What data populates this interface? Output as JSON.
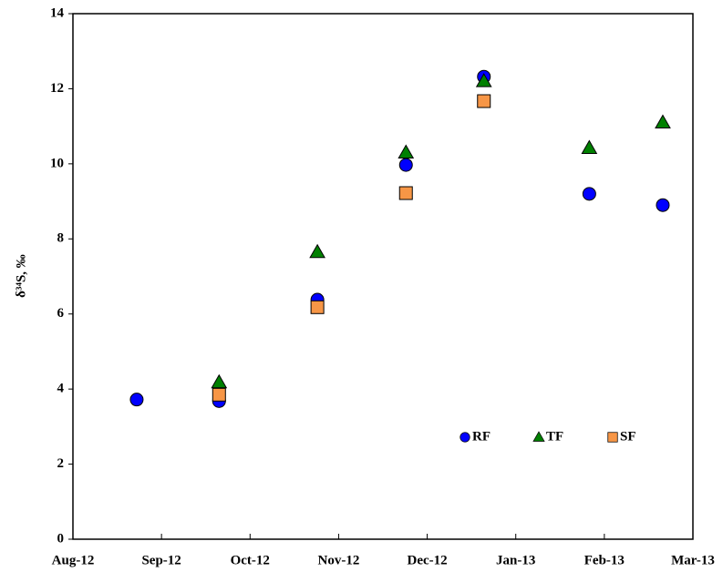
{
  "chart_data": {
    "type": "scatter",
    "ylabel": "δ³⁴S, ‰",
    "xlim": [
      0,
      7
    ],
    "xticks": [
      {
        "value": 0,
        "label": "Aug-12"
      },
      {
        "value": 1,
        "label": "Sep-12"
      },
      {
        "value": 2,
        "label": "Oct-12"
      },
      {
        "value": 3,
        "label": "Nov-12"
      },
      {
        "value": 4,
        "label": "Dec-12"
      },
      {
        "value": 5,
        "label": "Jan-13"
      },
      {
        "value": 6,
        "label": "Feb-13"
      },
      {
        "value": 7,
        "label": "Mar-13"
      }
    ],
    "ylim": [
      0,
      14
    ],
    "yticks": [
      0,
      2,
      4,
      6,
      8,
      10,
      12,
      14
    ],
    "legend": "lower right",
    "series": [
      {
        "name": "RF",
        "color": "#0000ff",
        "marker": "circle",
        "x": [
          0.72,
          1.65,
          2.76,
          3.76,
          4.64,
          5.83,
          6.66
        ],
        "values": [
          3.72,
          3.68,
          6.38,
          9.97,
          12.32,
          9.2,
          8.9
        ]
      },
      {
        "name": "TF",
        "color": "#008000",
        "marker": "triangle",
        "x": [
          1.65,
          2.76,
          3.76,
          4.64,
          5.83,
          6.66
        ],
        "values": [
          4.18,
          7.65,
          10.3,
          12.2,
          10.42,
          11.1
        ]
      },
      {
        "name": "SF",
        "color": "#f79646",
        "marker": "square",
        "x": [
          1.65,
          2.76,
          3.76,
          4.64
        ],
        "values": [
          3.85,
          6.18,
          9.22,
          11.67
        ]
      }
    ]
  }
}
